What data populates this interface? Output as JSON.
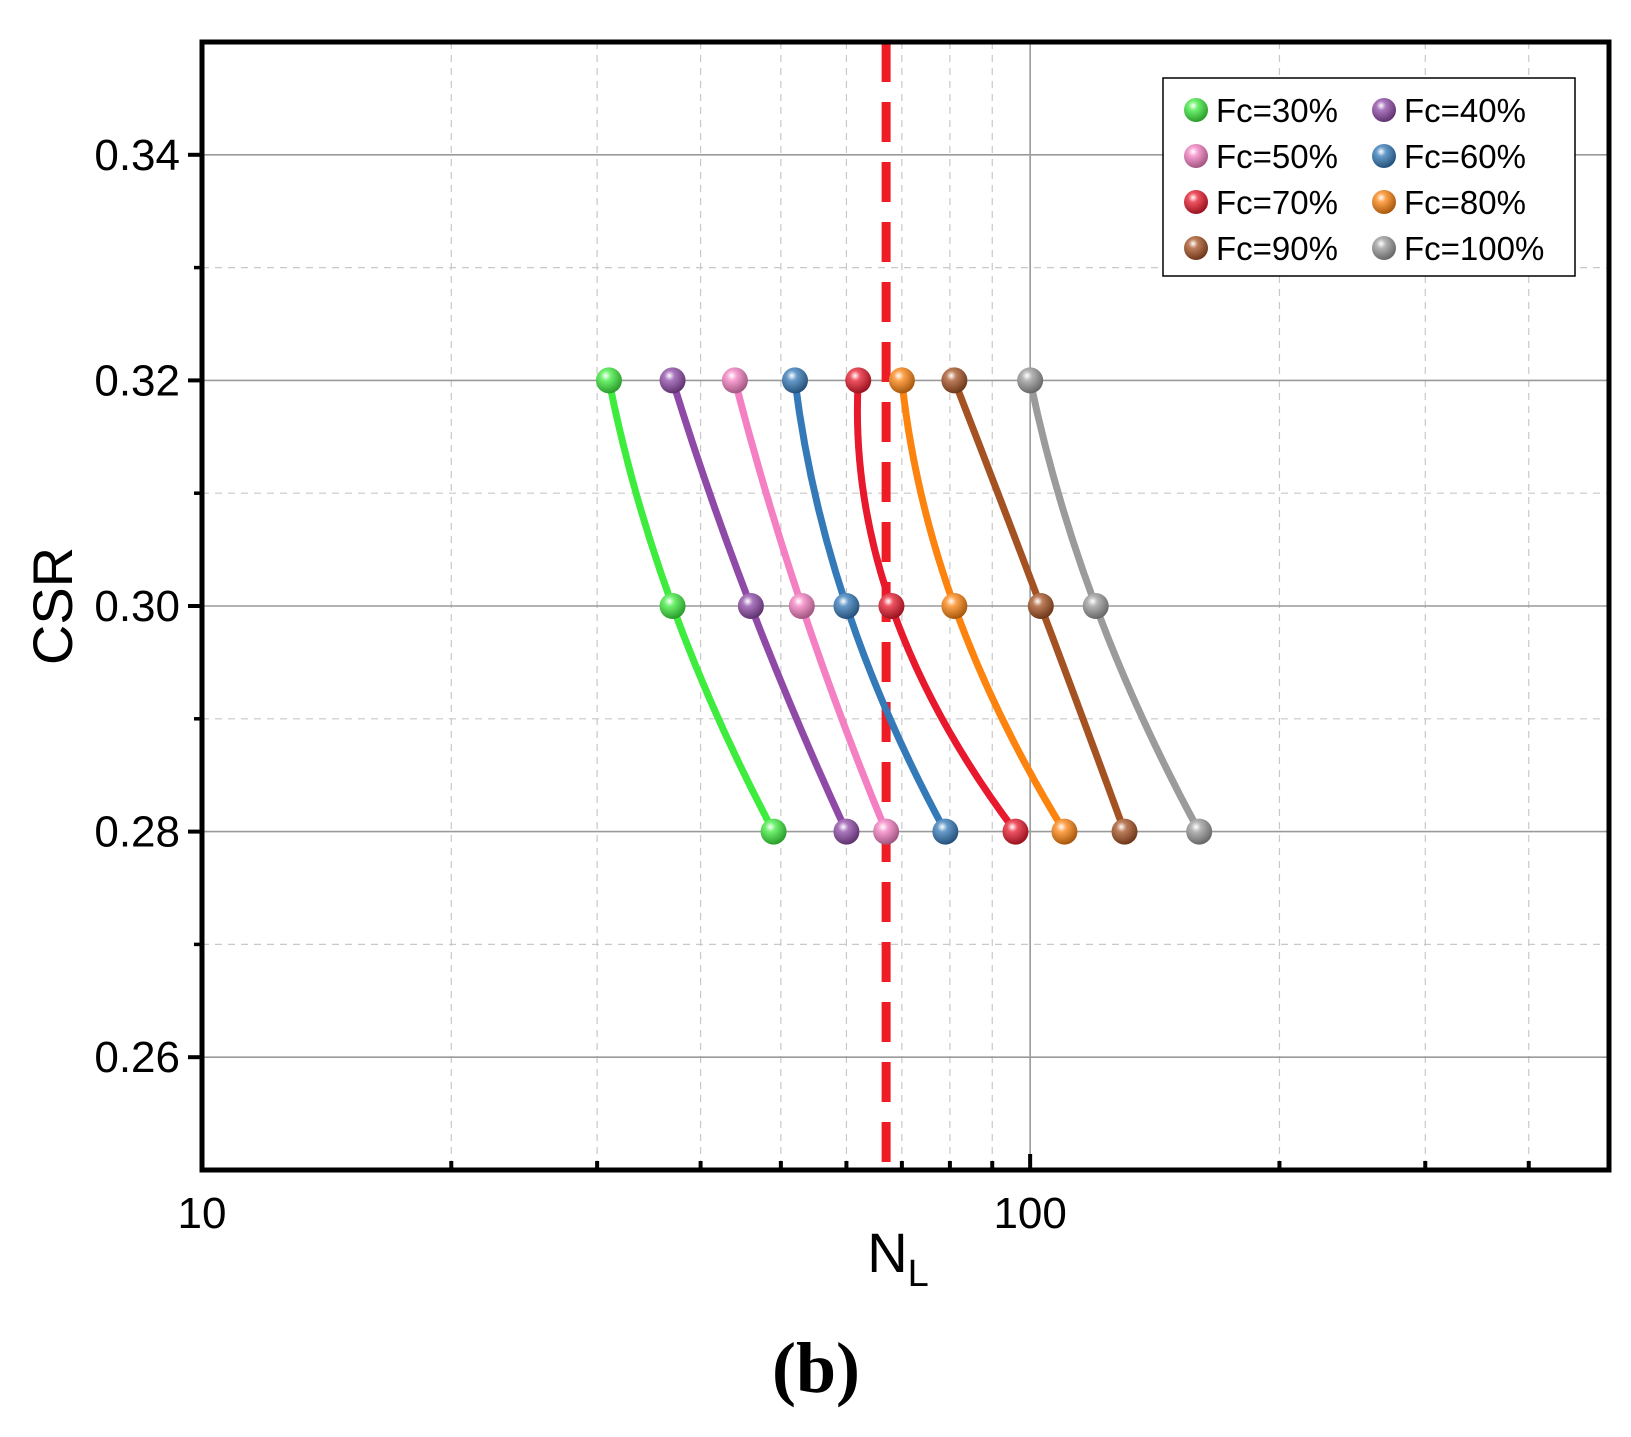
{
  "chart_data": {
    "type": "line",
    "title": "",
    "xlabel": "N",
    "xlabel_sub": "L",
    "ylabel": "CSR",
    "xscale": "log",
    "xlim": [
      10,
      500
    ],
    "ylim": [
      0.25,
      0.35
    ],
    "x_tick_labels": [
      {
        "value": 10,
        "label": "10"
      },
      {
        "value": 100,
        "label": "100"
      }
    ],
    "y_tick_labels": [
      {
        "value": 0.26,
        "label": "0.26"
      },
      {
        "value": 0.28,
        "label": "0.28"
      },
      {
        "value": 0.3,
        "label": "0.30"
      },
      {
        "value": 0.32,
        "label": "0.32"
      },
      {
        "value": 0.34,
        "label": "0.34"
      }
    ],
    "grid": true,
    "legend_position": "top-right",
    "reference_line": {
      "orientation": "vertical",
      "x": 67,
      "style": "dashed",
      "color": "#ee1c25"
    },
    "panel_label": "(b)",
    "series": [
      {
        "name": "Fc=30%",
        "color": "#3dec3d",
        "points": [
          {
            "x": 31,
            "y": 0.32
          },
          {
            "x": 37,
            "y": 0.3
          },
          {
            "x": 49,
            "y": 0.28
          }
        ]
      },
      {
        "name": "Fc=40%",
        "color": "#8f4aa8",
        "points": [
          {
            "x": 37,
            "y": 0.32
          },
          {
            "x": 46,
            "y": 0.3
          },
          {
            "x": 60,
            "y": 0.28
          }
        ]
      },
      {
        "name": "Fc=50%",
        "color": "#f47fc2",
        "points": [
          {
            "x": 44,
            "y": 0.32
          },
          {
            "x": 53,
            "y": 0.3
          },
          {
            "x": 67,
            "y": 0.28
          }
        ]
      },
      {
        "name": "Fc=60%",
        "color": "#3479b8",
        "points": [
          {
            "x": 52,
            "y": 0.32
          },
          {
            "x": 60,
            "y": 0.3
          },
          {
            "x": 79,
            "y": 0.28
          }
        ]
      },
      {
        "name": "Fc=70%",
        "color": "#e8192c",
        "points": [
          {
            "x": 62,
            "y": 0.32
          },
          {
            "x": 68,
            "y": 0.3
          },
          {
            "x": 96,
            "y": 0.28
          }
        ]
      },
      {
        "name": "Fc=80%",
        "color": "#fd830f",
        "points": [
          {
            "x": 70,
            "y": 0.32
          },
          {
            "x": 81,
            "y": 0.3
          },
          {
            "x": 110,
            "y": 0.28
          }
        ]
      },
      {
        "name": "Fc=90%",
        "color": "#a55223",
        "points": [
          {
            "x": 81,
            "y": 0.32
          },
          {
            "x": 103,
            "y": 0.3
          },
          {
            "x": 130,
            "y": 0.28
          }
        ]
      },
      {
        "name": "Fc=100%",
        "color": "#9b9b9b",
        "points": [
          {
            "x": 100,
            "y": 0.32
          },
          {
            "x": 120,
            "y": 0.3
          },
          {
            "x": 160,
            "y": 0.28
          }
        ]
      }
    ]
  }
}
